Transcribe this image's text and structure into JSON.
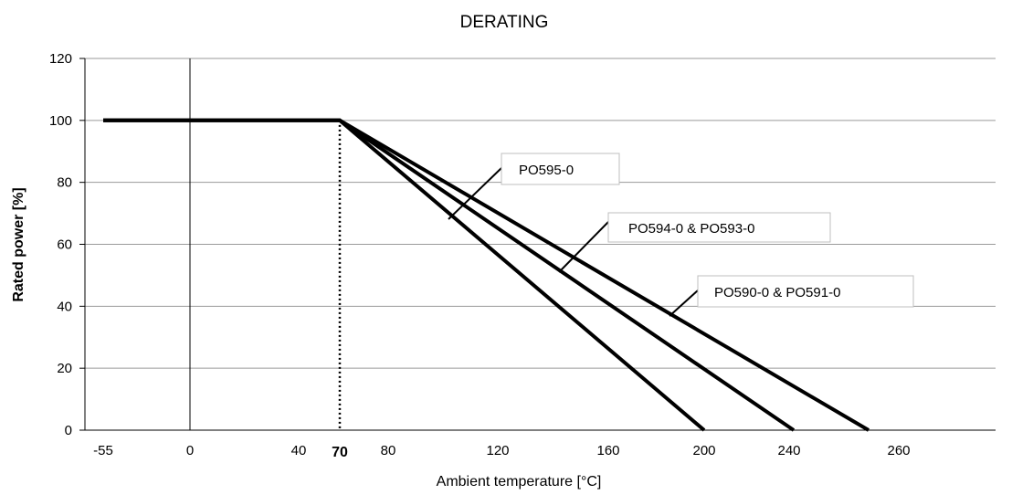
{
  "chart_data": {
    "type": "line",
    "title": "DERATING",
    "xlabel": "Ambient temperature [°C]",
    "ylabel": "Rated power [%]",
    "ylim": [
      0,
      120
    ],
    "yticks": [
      0,
      20,
      40,
      60,
      80,
      100,
      120
    ],
    "xticks": [
      -55,
      0,
      40,
      70,
      80,
      120,
      160,
      200,
      240,
      260
    ],
    "x_scale": "non-uniform (tick-label positions)",
    "grid": "horizontal",
    "vertical_lines": [
      {
        "x": 0,
        "style": "solid"
      },
      {
        "x": 70,
        "style": "dotted",
        "label": "70"
      }
    ],
    "series": [
      {
        "name": "PO595-0",
        "points": [
          [
            -55,
            100
          ],
          [
            70,
            100
          ],
          [
            200,
            0
          ]
        ]
      },
      {
        "name": "PO594-0 & PO593-0",
        "points": [
          [
            -55,
            100
          ],
          [
            70,
            100
          ],
          [
            235,
            0
          ]
        ]
      },
      {
        "name": "PO590-0 & PO591-0",
        "points": [
          [
            -55,
            100
          ],
          [
            70,
            100
          ],
          [
            265,
            0
          ]
        ]
      }
    ],
    "annotations": [
      "PO595-0",
      "PO594-0 & PO593-0",
      "PO590-0 & PO591-0"
    ]
  }
}
